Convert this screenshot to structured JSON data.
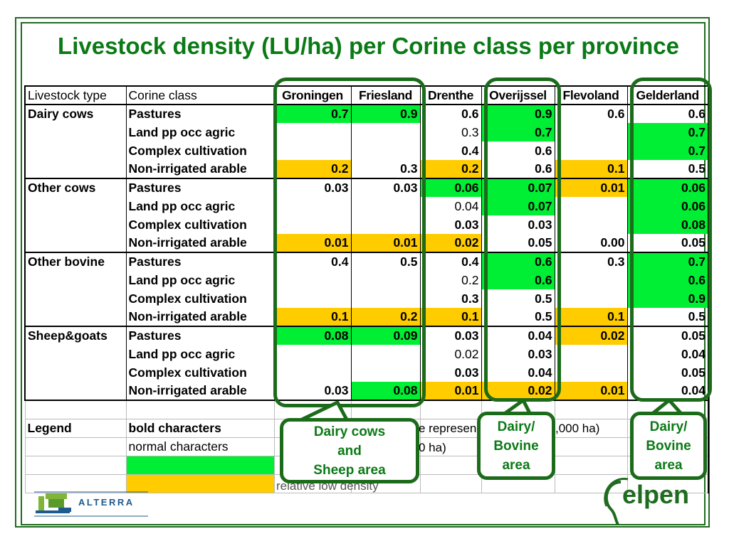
{
  "title": "Livestock density (LU/ha) per Corine class per province",
  "table": {
    "headers": [
      "Livestock type",
      "Corine class",
      "Groningen",
      "Friesland",
      "Drenthe",
      "Overijssel",
      "Flevoland",
      "Gelderland"
    ],
    "rows": [
      {
        "type": "Dairy cows",
        "class": "Pastures",
        "cells": [
          {
            "v": "0.7",
            "s": "g",
            "w": "b"
          },
          {
            "v": "0.9",
            "s": "g",
            "w": "b"
          },
          {
            "v": "0.6",
            "s": "",
            "w": "b"
          },
          {
            "v": "0.9",
            "s": "g",
            "w": "b"
          },
          {
            "v": "0.6",
            "s": "",
            "w": "b"
          },
          {
            "v": "0.6",
            "s": "",
            "w": "b"
          }
        ]
      },
      {
        "type": "",
        "class": "Land pp occ agric",
        "cells": [
          {
            "v": "",
            "s": "",
            "w": "b"
          },
          {
            "v": "",
            "s": "",
            "w": "b"
          },
          {
            "v": "0.3",
            "s": "",
            "w": "n"
          },
          {
            "v": "0.7",
            "s": "g",
            "w": "b"
          },
          {
            "v": "",
            "s": "",
            "w": "b"
          },
          {
            "v": "0.7",
            "s": "g",
            "w": "b"
          }
        ]
      },
      {
        "type": "",
        "class": "Complex cultivation",
        "cells": [
          {
            "v": "",
            "s": "",
            "w": "b"
          },
          {
            "v": "",
            "s": "",
            "w": "b"
          },
          {
            "v": "0.4",
            "s": "",
            "w": "b"
          },
          {
            "v": "0.6",
            "s": "",
            "w": "b"
          },
          {
            "v": "",
            "s": "",
            "w": "b"
          },
          {
            "v": "0.7",
            "s": "g",
            "w": "b"
          }
        ]
      },
      {
        "type": "",
        "class": "Non-irrigated arable",
        "cells": [
          {
            "v": "0.2",
            "s": "o",
            "w": "b"
          },
          {
            "v": "0.3",
            "s": "",
            "w": "b"
          },
          {
            "v": "0.2",
            "s": "o",
            "w": "b"
          },
          {
            "v": "0.6",
            "s": "",
            "w": "b"
          },
          {
            "v": "0.1",
            "s": "o",
            "w": "b"
          },
          {
            "v": "0.5",
            "s": "",
            "w": "b"
          }
        ]
      },
      {
        "type": "Other cows",
        "class": "Pastures",
        "cells": [
          {
            "v": "0.03",
            "s": "",
            "w": "b"
          },
          {
            "v": "0.03",
            "s": "",
            "w": "b"
          },
          {
            "v": "0.06",
            "s": "g",
            "w": "b"
          },
          {
            "v": "0.07",
            "s": "g",
            "w": "b"
          },
          {
            "v": "0.01",
            "s": "o",
            "w": "b"
          },
          {
            "v": "0.06",
            "s": "g",
            "w": "b"
          }
        ]
      },
      {
        "type": "",
        "class": "Land pp occ agric",
        "cells": [
          {
            "v": "",
            "s": "",
            "w": "b"
          },
          {
            "v": "",
            "s": "",
            "w": "b"
          },
          {
            "v": "0.04",
            "s": "",
            "w": "n"
          },
          {
            "v": "0.07",
            "s": "g",
            "w": "b"
          },
          {
            "v": "",
            "s": "",
            "w": "b"
          },
          {
            "v": "0.06",
            "s": "g",
            "w": "b"
          }
        ]
      },
      {
        "type": "",
        "class": "Complex cultivation",
        "cells": [
          {
            "v": "",
            "s": "",
            "w": "b"
          },
          {
            "v": "",
            "s": "",
            "w": "b"
          },
          {
            "v": "0.03",
            "s": "",
            "w": "b"
          },
          {
            "v": "0.03",
            "s": "",
            "w": "b"
          },
          {
            "v": "",
            "s": "",
            "w": "b"
          },
          {
            "v": "0.08",
            "s": "g",
            "w": "b"
          }
        ]
      },
      {
        "type": "",
        "class": "Non-irrigated arable",
        "cells": [
          {
            "v": "0.01",
            "s": "o",
            "w": "b"
          },
          {
            "v": "0.01",
            "s": "o",
            "w": "b"
          },
          {
            "v": "0.02",
            "s": "o",
            "w": "b"
          },
          {
            "v": "0.05",
            "s": "",
            "w": "b"
          },
          {
            "v": "0.00",
            "s": "",
            "w": "b"
          },
          {
            "v": "0.05",
            "s": "",
            "w": "b"
          }
        ]
      },
      {
        "type": "Other bovine",
        "class": "Pastures",
        "cells": [
          {
            "v": "0.4",
            "s": "",
            "w": "b"
          },
          {
            "v": "0.5",
            "s": "",
            "w": "b"
          },
          {
            "v": "0.4",
            "s": "",
            "w": "b"
          },
          {
            "v": "0.6",
            "s": "g",
            "w": "b"
          },
          {
            "v": "0.3",
            "s": "",
            "w": "b"
          },
          {
            "v": "0.7",
            "s": "g",
            "w": "b"
          }
        ]
      },
      {
        "type": "",
        "class": "Land pp occ agric",
        "cells": [
          {
            "v": "",
            "s": "",
            "w": "b"
          },
          {
            "v": "",
            "s": "",
            "w": "b"
          },
          {
            "v": "0.2",
            "s": "",
            "w": "n"
          },
          {
            "v": "0.6",
            "s": "g",
            "w": "b"
          },
          {
            "v": "",
            "s": "",
            "w": "b"
          },
          {
            "v": "0.6",
            "s": "g",
            "w": "b"
          }
        ]
      },
      {
        "type": "",
        "class": "Complex cultivation",
        "cells": [
          {
            "v": "",
            "s": "",
            "w": "b"
          },
          {
            "v": "",
            "s": "",
            "w": "b"
          },
          {
            "v": "0.3",
            "s": "",
            "w": "b"
          },
          {
            "v": "0.5",
            "s": "",
            "w": "b"
          },
          {
            "v": "",
            "s": "",
            "w": "b"
          },
          {
            "v": "0.9",
            "s": "g",
            "w": "b"
          }
        ]
      },
      {
        "type": "",
        "class": "Non-irrigated arable",
        "cells": [
          {
            "v": "0.1",
            "s": "o",
            "w": "b"
          },
          {
            "v": "0.2",
            "s": "o",
            "w": "b"
          },
          {
            "v": "0.1",
            "s": "o",
            "w": "b"
          },
          {
            "v": "0.5",
            "s": "",
            "w": "b"
          },
          {
            "v": "0.1",
            "s": "o",
            "w": "b"
          },
          {
            "v": "0.5",
            "s": "",
            "w": "b"
          }
        ]
      },
      {
        "type": "Sheep&goats",
        "class": "Pastures",
        "cells": [
          {
            "v": "0.08",
            "s": "g",
            "w": "b"
          },
          {
            "v": "0.09",
            "s": "g",
            "w": "b"
          },
          {
            "v": "0.03",
            "s": "",
            "w": "b"
          },
          {
            "v": "0.04",
            "s": "",
            "w": "b"
          },
          {
            "v": "0.02",
            "s": "o",
            "w": "b"
          },
          {
            "v": "0.05",
            "s": "",
            "w": "b"
          }
        ]
      },
      {
        "type": "",
        "class": "Land pp occ agric",
        "cells": [
          {
            "v": "",
            "s": "",
            "w": "b"
          },
          {
            "v": "",
            "s": "",
            "w": "b"
          },
          {
            "v": "0.02",
            "s": "",
            "w": "n"
          },
          {
            "v": "0.03",
            "s": "",
            "w": "b"
          },
          {
            "v": "",
            "s": "",
            "w": "b"
          },
          {
            "v": "0.04",
            "s": "",
            "w": "b"
          }
        ]
      },
      {
        "type": "",
        "class": "Complex cultivation",
        "cells": [
          {
            "v": "",
            "s": "",
            "w": "b"
          },
          {
            "v": "",
            "s": "",
            "w": "b"
          },
          {
            "v": "0.03",
            "s": "",
            "w": "b"
          },
          {
            "v": "0.04",
            "s": "",
            "w": "b"
          },
          {
            "v": "",
            "s": "",
            "w": "b"
          },
          {
            "v": "0.05",
            "s": "",
            "w": "b"
          }
        ]
      },
      {
        "type": "",
        "class": "Non-irrigated arable",
        "cells": [
          {
            "v": "0.03",
            "s": "",
            "w": "b"
          },
          {
            "v": "0.08",
            "s": "g",
            "w": "b"
          },
          {
            "v": "0.01",
            "s": "o",
            "w": "b"
          },
          {
            "v": "0.02",
            "s": "o",
            "w": "b"
          },
          {
            "v": "0.01",
            "s": "o",
            "w": "b"
          },
          {
            "v": "0.04",
            "s": "",
            "w": "b"
          }
        ]
      }
    ]
  },
  "legend": {
    "label": "Legend",
    "bold_label": "bold characters",
    "normal_label": "normal characters",
    "bold_desc_fragment": "e represen",
    "bold_desc_tail": ",000 ha)",
    "normal_desc_fragment": "0 ha)",
    "low_desc": "relative low density",
    "green_color": "#00ee33",
    "orange_color": "#ffcc00"
  },
  "callouts": {
    "dairy_sheep": [
      "Dairy cows",
      "and",
      "Sheep area"
    ],
    "overijssel": [
      "Dairy/",
      "Bovine",
      "area"
    ],
    "gelderland": [
      "Dairy/",
      "Bovine",
      "area"
    ]
  },
  "logos": {
    "alterra": "ALTERRA",
    "elpen": "elpen"
  }
}
